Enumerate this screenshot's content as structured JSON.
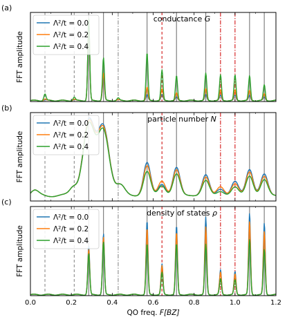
{
  "chart_data": [
    {
      "type": "line",
      "panel_label": "(a)",
      "title": "conductance G",
      "title_parts": {
        "text": "conductance",
        "symbol": "G"
      },
      "ylabel": "FFT amplitude",
      "xlim": [
        0.0,
        1.2
      ],
      "ylim": [
        0,
        1.0
      ],
      "legend_position": "top-left",
      "grid": false,
      "peak_positions": [
        0.285,
        0.357,
        0.57,
        0.643,
        0.714,
        0.857,
        0.929,
        1.0,
        1.071,
        1.143
      ],
      "series": [
        {
          "name": "Λ²/t = 0.0",
          "color": "#1f77b4",
          "peak_heights": [
            0.99,
            0.29,
            0.07,
            0.07,
            0.04,
            0.07,
            0.06,
            0.06,
            0.06,
            0.04
          ],
          "small_peaks": [
            [
              0.071,
              0.01
            ],
            [
              0.214,
              0.01
            ],
            [
              0.429,
              0.01
            ]
          ]
        },
        {
          "name": "Λ²/t = 0.2",
          "color": "#ff7f0e",
          "peak_heights": [
            0.99,
            0.33,
            0.16,
            0.14,
            0.09,
            0.14,
            0.13,
            0.13,
            0.12,
            0.08
          ],
          "small_peaks": [
            [
              0.071,
              0.02
            ],
            [
              0.214,
              0.015
            ],
            [
              0.429,
              0.01
            ]
          ]
        },
        {
          "name": "Λ²/t = 0.4",
          "color": "#2ca02c",
          "peak_heights": [
            1.0,
            0.52,
            0.58,
            0.37,
            0.3,
            0.33,
            0.31,
            0.31,
            0.3,
            0.19
          ],
          "small_peaks": [
            [
              0.071,
              0.08
            ],
            [
              0.214,
              0.04
            ],
            [
              0.429,
              0.03
            ]
          ]
        }
      ]
    },
    {
      "type": "line",
      "panel_label": "(b)",
      "title": "particle number N",
      "title_parts": {
        "text": "particle number",
        "symbol": "N"
      },
      "ylabel": "FFT amplitude",
      "xlim": [
        0.0,
        1.2
      ],
      "ylim": [
        0,
        1.0
      ],
      "legend_position": "top-left",
      "grid": false,
      "peak_positions": [
        0.285,
        0.357,
        0.57,
        0.643,
        0.714,
        0.857,
        0.929,
        1.0,
        1.071,
        1.143
      ],
      "series": [
        {
          "name": "Λ²/t = 0.0",
          "color": "#1f77b4",
          "peak_heights": [
            0.98,
            0.91,
            0.47,
            0.21,
            0.41,
            0.32,
            0.15,
            0.24,
            0.39,
            0.33
          ]
        },
        {
          "name": "Λ²/t = 0.2",
          "color": "#ff7f0e",
          "peak_heights": [
            0.96,
            0.89,
            0.43,
            0.25,
            0.38,
            0.29,
            0.18,
            0.21,
            0.36,
            0.3
          ]
        },
        {
          "name": "Λ²/t = 0.4",
          "color": "#2ca02c",
          "peak_heights": [
            0.93,
            0.86,
            0.36,
            0.19,
            0.33,
            0.25,
            0.12,
            0.17,
            0.31,
            0.26
          ]
        }
      ],
      "baseline": 0.07
    },
    {
      "type": "line",
      "panel_label": "(c)",
      "title": "density of states ρ",
      "title_parts": {
        "text": "density of states",
        "symbol": "ρ"
      },
      "ylabel": "FFT amplitude",
      "xlabel": "QO freq. F[BZ]",
      "xlim": [
        0.0,
        1.2
      ],
      "ylim": [
        0,
        1.0
      ],
      "legend_position": "top-left",
      "grid": false,
      "peak_positions": [
        0.285,
        0.357,
        0.57,
        0.643,
        0.714,
        0.857,
        0.929,
        1.0,
        1.071,
        1.143
      ],
      "series": [
        {
          "name": "Λ²/t = 0.0",
          "color": "#1f77b4",
          "peak_heights": [
            0.59,
            0.74,
            0.9,
            0.37,
            0.84,
            0.94,
            0.3,
            0.28,
            0.99,
            0.87
          ]
        },
        {
          "name": "Λ²/t = 0.2",
          "color": "#ff7f0e",
          "peak_heights": [
            0.55,
            0.7,
            0.81,
            0.35,
            0.76,
            0.82,
            0.27,
            0.25,
            0.89,
            0.77
          ]
        },
        {
          "name": "Λ²/t = 0.4",
          "color": "#2ca02c",
          "peak_heights": [
            0.5,
            0.64,
            0.62,
            0.27,
            0.62,
            0.61,
            0.19,
            0.18,
            0.67,
            0.55
          ]
        }
      ]
    }
  ],
  "xticks": [
    "0.0",
    "0.2",
    "0.4",
    "0.6",
    "0.8",
    "1.0",
    "1.2"
  ],
  "xtick_values": [
    0.0,
    0.2,
    0.4,
    0.6,
    0.8,
    1.0,
    1.2
  ],
  "reference_lines": {
    "gray_solid": [
      0.285,
      0.357,
      0.57,
      0.714,
      0.857,
      1.071,
      1.143
    ],
    "gray_dashed": [
      0.071,
      0.214
    ],
    "gray_dashdot": [
      0.429
    ],
    "red_dashed": [
      0.643
    ],
    "red_dashdot": [
      0.929,
      1.0
    ]
  },
  "colors": {
    "gray_line": "#808080",
    "red_line": "#d62728",
    "axes": "#000000"
  },
  "xlabel_parts": {
    "text": "QO freq.",
    "symbol": "F[BZ]"
  }
}
